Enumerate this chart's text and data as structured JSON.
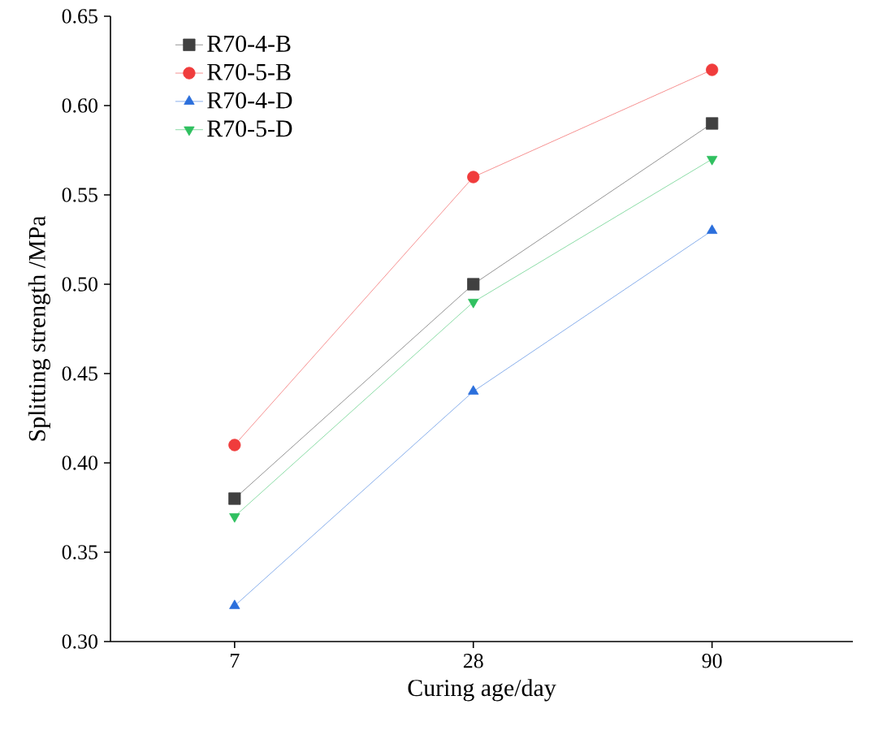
{
  "chart_data": {
    "type": "line",
    "xlabel": "Curing age/day",
    "ylabel": "Splitting strength /MPa",
    "categories": [
      "7",
      "28",
      "90"
    ],
    "ylim": [
      0.3,
      0.65
    ],
    "yticks": [
      {
        "value": 0.3,
        "label": "0.30"
      },
      {
        "value": 0.35,
        "label": "0.35"
      },
      {
        "value": 0.4,
        "label": "0.40"
      },
      {
        "value": 0.45,
        "label": "0.45"
      },
      {
        "value": 0.5,
        "label": "0.50"
      },
      {
        "value": 0.55,
        "label": "0.55"
      },
      {
        "value": 0.6,
        "label": "0.60"
      },
      {
        "value": 0.65,
        "label": "0.65"
      }
    ],
    "legend": "top left",
    "grid": false,
    "line_style": "solid",
    "series": [
      {
        "name": "R70-4-B",
        "color": "#404040",
        "marker": "square",
        "values": [
          0.38,
          0.5,
          0.59
        ]
      },
      {
        "name": "R70-5-B",
        "color": "#f03c3c",
        "marker": "circle",
        "values": [
          0.41,
          0.56,
          0.62
        ]
      },
      {
        "name": "R70-4-D",
        "color": "#2b6fdc",
        "marker": "triangle",
        "values": [
          0.32,
          0.44,
          0.53
        ]
      },
      {
        "name": "R70-5-D",
        "color": "#30c060",
        "marker": "triangle-down",
        "values": [
          0.37,
          0.49,
          0.57
        ]
      }
    ]
  }
}
